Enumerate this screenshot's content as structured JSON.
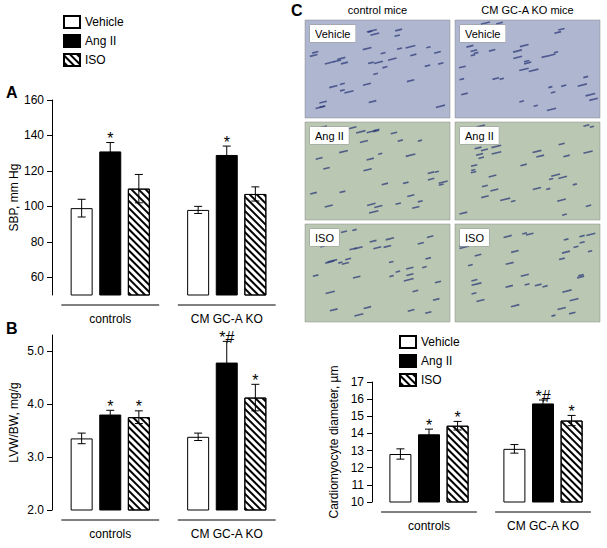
{
  "chart_data": [
    {
      "type": "bar",
      "panel": "A",
      "y_label": "SBP, mm Hg",
      "categories": [
        "controls",
        "CM GC-A KO"
      ],
      "series": [
        {
          "name": "Vehicle",
          "color": "#ffffff",
          "values": [
            99,
            98
          ],
          "error": [
            5,
            2
          ],
          "significance": [
            null,
            null
          ]
        },
        {
          "name": "Ang II",
          "color": "#000000",
          "values": [
            131,
            129
          ],
          "error": [
            5,
            5
          ],
          "significance": [
            "*",
            "*"
          ]
        },
        {
          "name": "ISO",
          "color": "#ffffff",
          "marker": "hatch",
          "values": [
            110,
            107
          ],
          "error": [
            8,
            4
          ],
          "significance": [
            null,
            null
          ]
        }
      ],
      "ylim": [
        50,
        160
      ],
      "yticks": [
        60,
        80,
        100,
        120,
        140,
        160
      ],
      "grid": false,
      "legend": "top-left"
    },
    {
      "type": "bar",
      "panel": "B",
      "y_label": "LVW/BW, mg/g",
      "categories": [
        "controls",
        "CM GC-A KO"
      ],
      "series": [
        {
          "name": "Vehicle",
          "color": "#ffffff",
          "values": [
            3.35,
            3.38
          ],
          "error": [
            0.1,
            0.07
          ],
          "significance": [
            null,
            null
          ]
        },
        {
          "name": "Ang II",
          "color": "#000000",
          "values": [
            3.8,
            4.78
          ],
          "error": [
            0.08,
            0.4
          ],
          "significance": [
            "*",
            "*#"
          ]
        },
        {
          "name": "ISO",
          "color": "#ffffff",
          "marker": "hatch",
          "values": [
            3.75,
            4.12
          ],
          "error": [
            0.12,
            0.25
          ],
          "significance": [
            "*",
            "*"
          ]
        }
      ],
      "ylim": [
        2,
        5.3
      ],
      "yticks": [
        {
          "value": 2,
          "label": "2.0"
        },
        {
          "value": 3,
          "label": "3.0"
        },
        {
          "value": 4,
          "label": "4.0"
        },
        {
          "value": 5,
          "label": "5.0"
        }
      ],
      "grid": false
    },
    {
      "type": "bar",
      "y_label": "Cardiomyocyte diameter, µm",
      "categories": [
        "controls",
        "CM GC-A KO"
      ],
      "series": [
        {
          "name": "Vehicle",
          "color": "#ffffff",
          "values": [
            12.8,
            13.1
          ],
          "error": [
            0.3,
            0.25
          ],
          "significance": [
            null,
            null
          ]
        },
        {
          "name": "Ang II",
          "color": "#000000",
          "values": [
            13.95,
            15.75
          ],
          "error": [
            0.3,
            0.2
          ],
          "significance": [
            "*",
            "*#"
          ]
        },
        {
          "name": "ISO",
          "color": "#ffffff",
          "marker": "hatch",
          "values": [
            14.45,
            14.75
          ],
          "error": [
            0.25,
            0.3
          ],
          "significance": [
            "*",
            "*"
          ]
        }
      ],
      "ylim": [
        10,
        17
      ],
      "yticks": [
        10,
        11,
        12,
        13,
        14,
        15,
        16,
        17
      ],
      "grid": false,
      "legend": "top-left"
    }
  ],
  "images": {
    "panel": "C",
    "columns": [
      "control mice",
      "CM GC-A KO mice"
    ],
    "rows": [
      "Vehicle",
      "Ang II",
      "ISO"
    ]
  }
}
